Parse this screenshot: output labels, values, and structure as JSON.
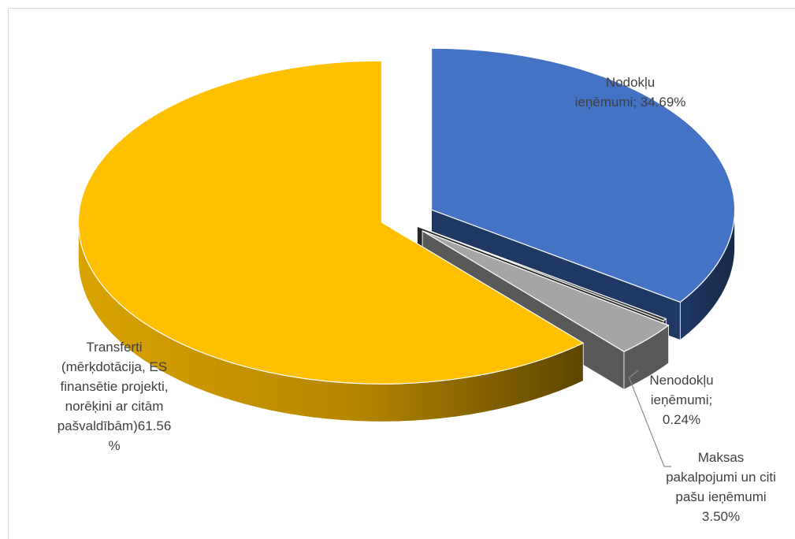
{
  "chart_data": {
    "type": "pie",
    "title": "",
    "three_d": true,
    "exploded": true,
    "legend": "none",
    "slices": [
      {
        "name": "Nodokļu ieņēmumi",
        "value": 34.69,
        "label_lines": [
          "Nodokļu",
          "ieņēmumi; 34.69%"
        ],
        "color": "#4472c4",
        "side_color": "#1f3864"
      },
      {
        "name": "Nenodokļu ieņēmumi",
        "value": 0.24,
        "label_lines": [
          "Nenodokļu",
          "ieņēmumi;",
          "0.24%"
        ],
        "color": "#3a3a3a",
        "side_color": "#262626"
      },
      {
        "name": "Maksas pakalpojumi un citi pašu ieņēmumi",
        "value": 3.5,
        "label_lines": [
          "Maksas",
          "pakalpojumi un citi",
          "pašu ieņēmumi",
          "3.50%"
        ],
        "color": "#a5a5a5",
        "side_color": "#595959"
      },
      {
        "name": "Transferti (mērķdotācija, ES finansētie projekti, norēķini ar citām pašvaldībām)",
        "value": 61.56,
        "label_lines": [
          "Transferti",
          "(mērķdotācija, ES",
          "finansētie projekti,",
          "norēķini ar citām",
          "pašvaldībām)61.56",
          "%"
        ],
        "color": "#ffc000",
        "side_color": "#bf8f00"
      }
    ]
  }
}
